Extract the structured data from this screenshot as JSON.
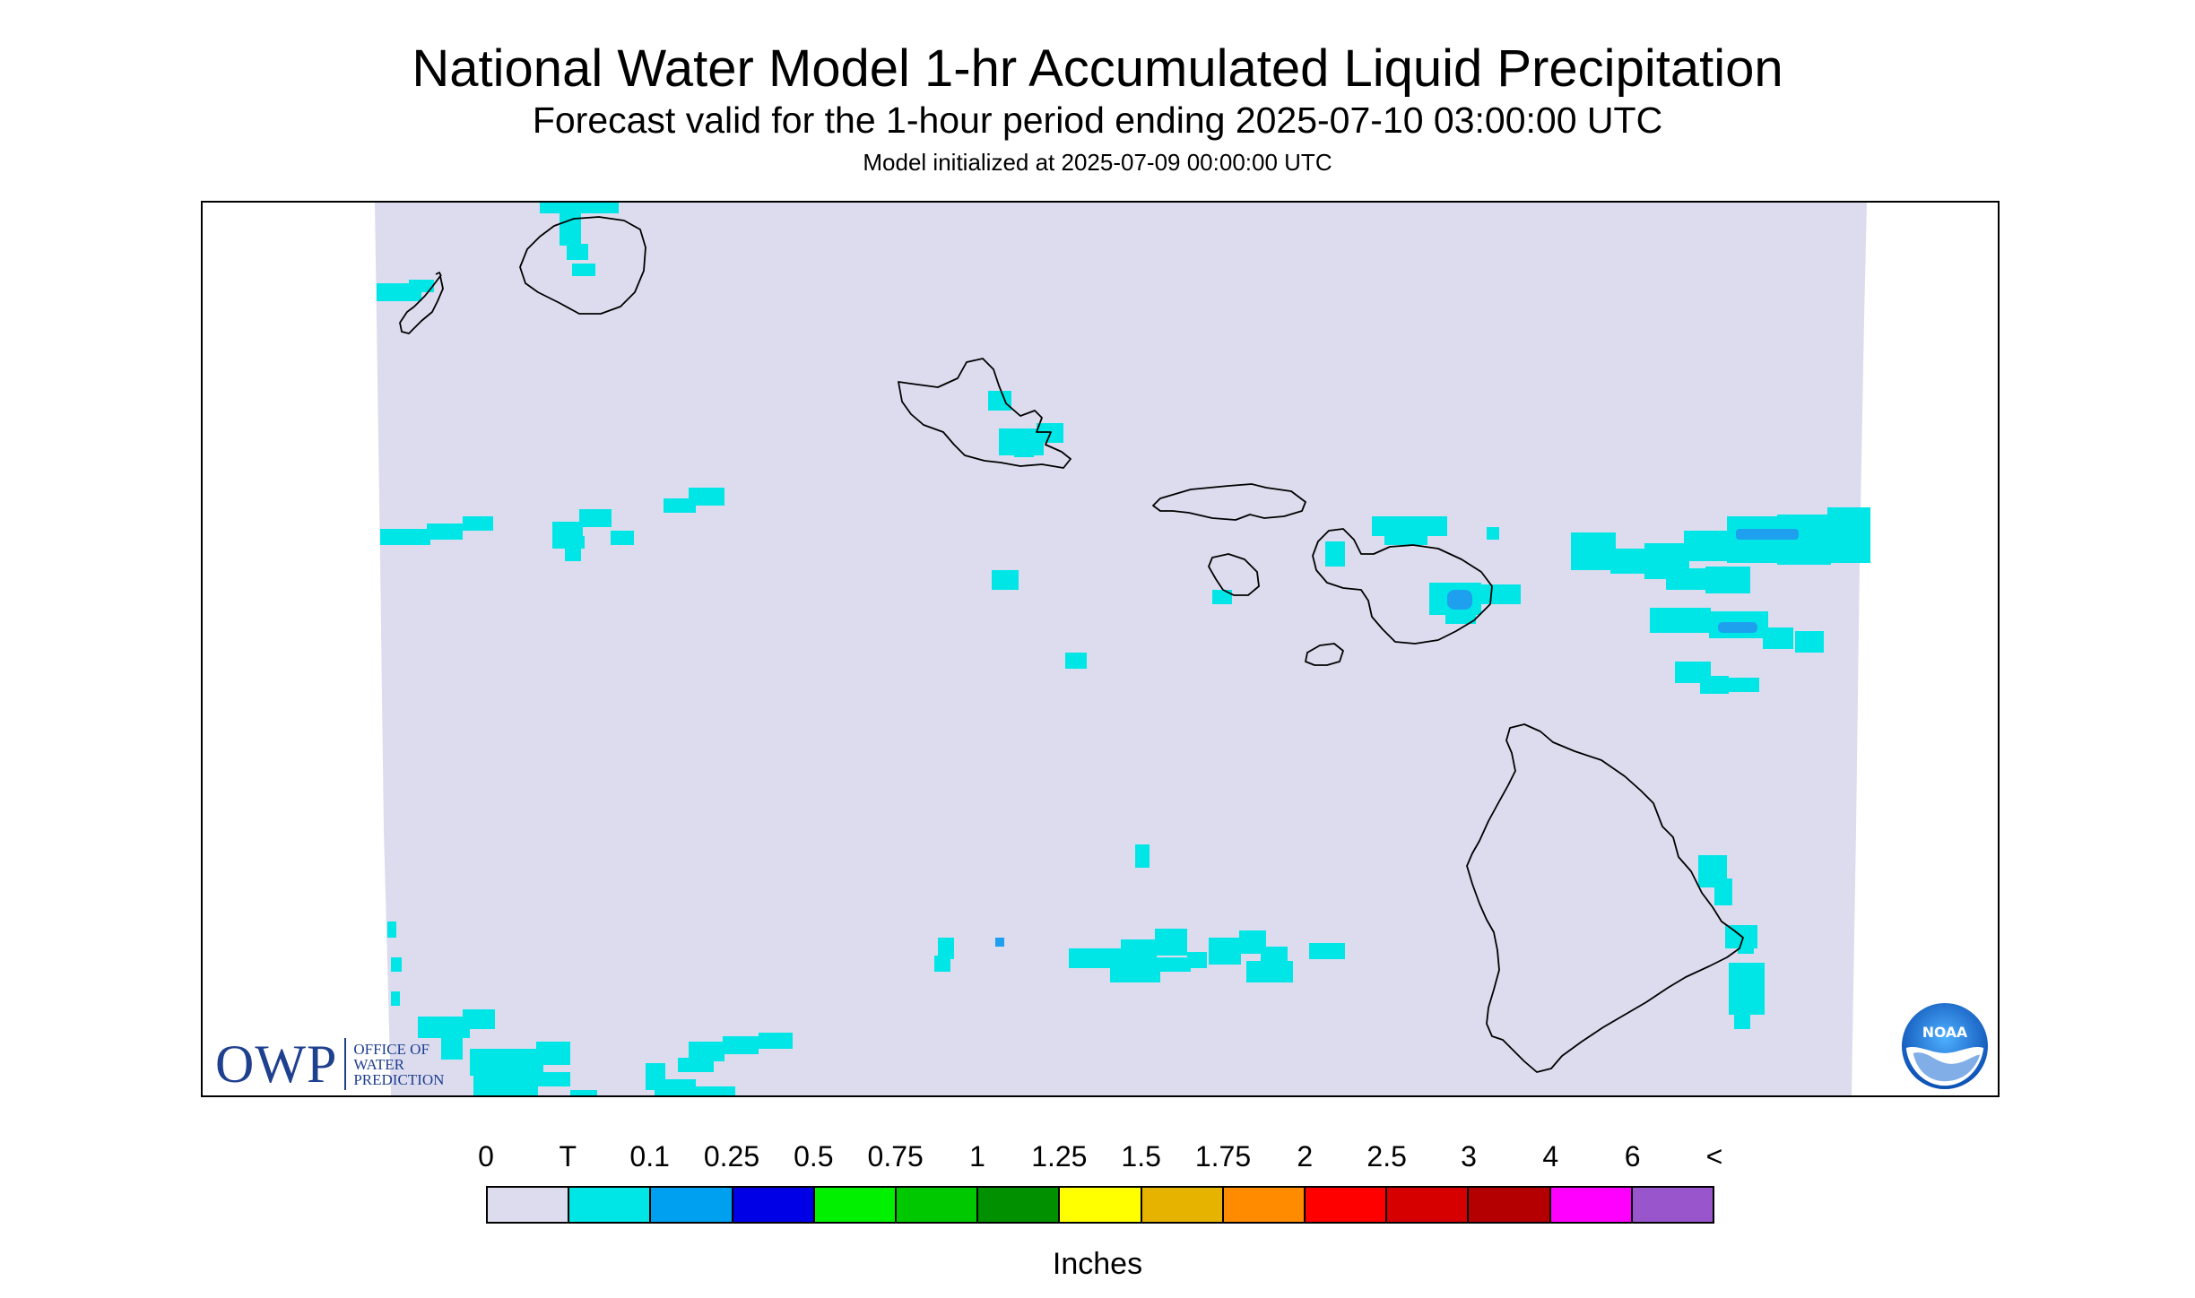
{
  "header": {
    "title": "National Water Model 1-hr Accumulated Liquid Precipitation",
    "subtitle": "Forecast valid for the 1-hour period ending 2025-07-10 03:00:00 UTC",
    "init": "Model initialized at 2025-07-09 00:00:00 UTC"
  },
  "map": {
    "background_color": "#dcdcee",
    "coastline_color": "#000000",
    "islands": [
      "Kauai",
      "Niihau",
      "Oahu",
      "Molokai",
      "Lanai",
      "Maui",
      "Kahoolawe",
      "Hawaii"
    ]
  },
  "legend": {
    "labels": [
      "0",
      "T",
      "0.1",
      "0.25",
      "0.5",
      "0.75",
      "1",
      "1.25",
      "1.5",
      "1.75",
      "2",
      "2.5",
      "3",
      "4",
      "6",
      "<"
    ],
    "colors": [
      "#dcdcee",
      "#00e6e6",
      "#00a0f0",
      "#0000e6",
      "#00f000",
      "#00c800",
      "#009000",
      "#ffff00",
      "#e6b400",
      "#ff8c00",
      "#ff0000",
      "#d70000",
      "#b40000",
      "#ff00ff",
      "#9955cc"
    ],
    "units": "Inches"
  },
  "logos": {
    "owp_letters": "OWP",
    "owp_line1": "OFFICE OF",
    "owp_line2": "WATER",
    "owp_line3": "PREDICTION",
    "noaa_text": "NOAA",
    "owp_color": "#1f3f8f",
    "noaa_color": "#1b6bd6"
  }
}
